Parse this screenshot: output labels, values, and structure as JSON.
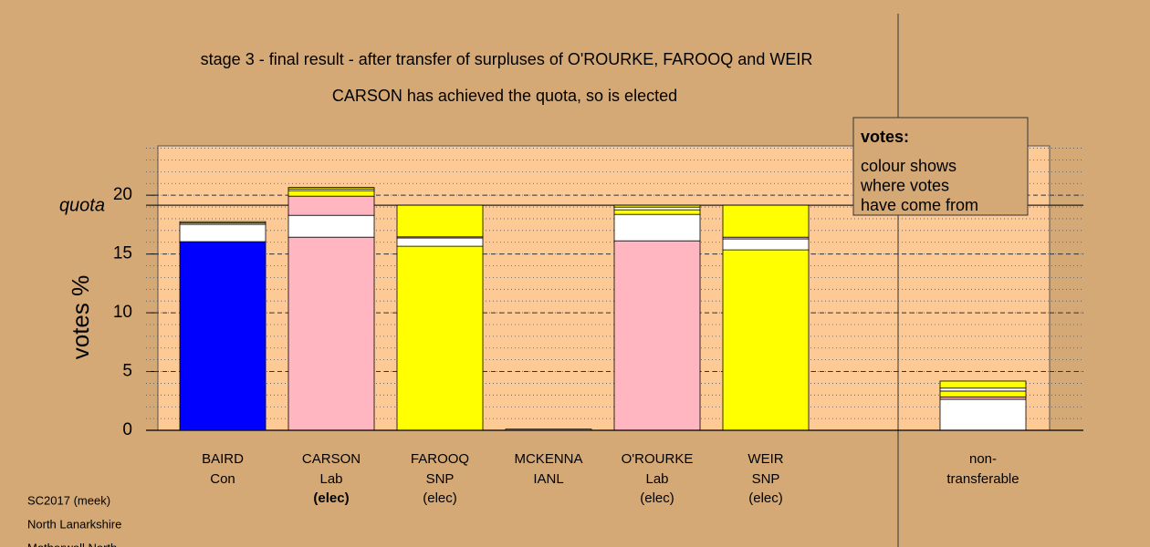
{
  "chart_data": {
    "type": "stacked_bar",
    "title": "stage 3 - final result - after transfer of surpluses of O'ROURKE, FAROOQ and WEIR",
    "subtitle": "CARSON has achieved the quota, so is elected",
    "y_label": "votes %",
    "ylim": [
      0,
      24.2
    ],
    "yticks": [
      0,
      5,
      10,
      15,
      20
    ],
    "grid": true,
    "minor_grid_step": 1,
    "quota": 19.15,
    "quota_label": "quota",
    "legend": {
      "title": "votes:",
      "lines": [
        "colour shows",
        "where votes",
        "have come from"
      ]
    },
    "bars": [
      {
        "name": "BAIRD",
        "party": "Con",
        "status": null,
        "segments": [
          {
            "color": "#0000ff",
            "value": 16.05
          },
          {
            "color": "#ffffff",
            "value": 1.47
          },
          {
            "color": "#ffb6c1",
            "value": 0.12
          },
          {
            "color": "#ffff00",
            "value": 0.11
          }
        ]
      },
      {
        "name": "CARSON",
        "party": "Lab",
        "status": "(elec)",
        "status_bold": true,
        "segments": [
          {
            "color": "#ffb6c1",
            "value": 16.43
          },
          {
            "color": "#ffffff",
            "value": 1.86
          },
          {
            "color": "#ffb6c1",
            "value": 1.63
          },
          {
            "color": "#ffff00",
            "value": 0.47
          },
          {
            "color": "#ffffff",
            "value": 0.15
          },
          {
            "color": "#ffff00",
            "value": 0.12
          }
        ]
      },
      {
        "name": "FAROOQ",
        "party": "SNP",
        "status": "(elec)",
        "segments": [
          {
            "color": "#ffff00",
            "value": 15.66
          },
          {
            "color": "#ffffff",
            "value": 0.7
          },
          {
            "color": "#ffb6c1",
            "value": 0.1
          },
          {
            "color": "#ffff00",
            "value": 2.69
          }
        ]
      },
      {
        "name": "MCKENNA",
        "party": "IANL",
        "status": null,
        "segments": [
          {
            "color": "#ffff00",
            "value": 0.1
          }
        ]
      },
      {
        "name": "O'ROURKE",
        "party": "Lab",
        "status": "(elec)",
        "segments": [
          {
            "color": "#ffb6c1",
            "value": 16.12
          },
          {
            "color": "#ffffff",
            "value": 2.25
          },
          {
            "color": "#ffff00",
            "value": 0.39
          },
          {
            "color": "#ffffff",
            "value": 0.23
          },
          {
            "color": "#ffff00",
            "value": 0.16
          }
        ]
      },
      {
        "name": "WEIR",
        "party": "SNP",
        "status": "(elec)",
        "segments": [
          {
            "color": "#ffff00",
            "value": 15.35
          },
          {
            "color": "#ffffff",
            "value": 0.93
          },
          {
            "color": "#ffb6c1",
            "value": 0.15
          },
          {
            "color": "#ffff00",
            "value": 2.72
          }
        ]
      }
    ],
    "non_transferable": {
      "label": [
        "non-",
        "transferable"
      ],
      "segments": [
        {
          "color": "#ffffff",
          "value": 2.64
        },
        {
          "color": "#ffb6c1",
          "value": 0.2
        },
        {
          "color": "#ffff00",
          "value": 0.5
        },
        {
          "color": "#ffffff",
          "value": 0.25
        },
        {
          "color": "#ffff00",
          "value": 0.6
        }
      ]
    },
    "footer": [
      "SC2017 (meek)",
      "North Lanarkshire",
      "Motherwell North"
    ]
  }
}
